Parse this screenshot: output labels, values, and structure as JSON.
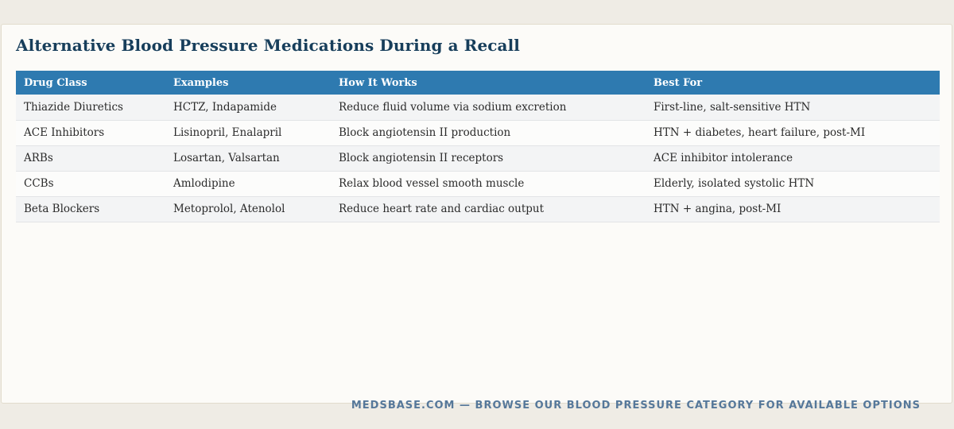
{
  "title": "Alternative Blood Pressure Medications During a Recall",
  "table": {
    "headers": [
      "Drug Class",
      "Examples",
      "How It Works",
      "Best For"
    ],
    "rows": [
      [
        "Thiazide Diuretics",
        "HCTZ, Indapamide",
        "Reduce fluid volume via sodium excretion",
        "First-line, salt-sensitive HTN"
      ],
      [
        "ACE Inhibitors",
        "Lisinopril, Enalapril",
        "Block angiotensin II production",
        "HTN + diabetes, heart failure, post-MI"
      ],
      [
        "ARBs",
        "Losartan, Valsartan",
        "Block angiotensin II receptors",
        "ACE inhibitor intolerance"
      ],
      [
        "CCBs",
        "Amlodipine",
        "Relax blood vessel smooth muscle",
        "Elderly, isolated systolic HTN"
      ],
      [
        "Beta Blockers",
        "Metoprolol, Atenolol",
        "Reduce heart rate and cardiac output",
        "HTN + angina, post-MI"
      ]
    ]
  },
  "footer": "MEDSBASE.COM — BROWSE OUR BLOOD PRESSURE CATEGORY FOR AVAILABLE OPTIONS",
  "colors": {
    "header_bg": "#2e7ab0",
    "title": "#173e5b",
    "footer": "#56789a"
  }
}
